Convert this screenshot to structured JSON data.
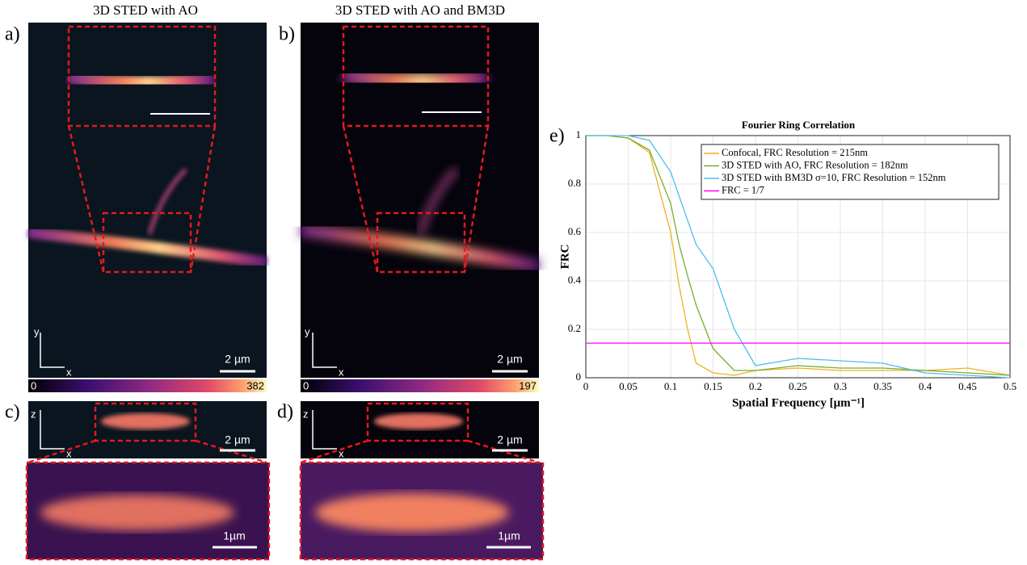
{
  "figure": {
    "panel_a": {
      "label": "a)",
      "title": "3D STED with AO",
      "colorbar_min": "0",
      "colorbar_max": "382",
      "scale_bar": "2 µm",
      "axis_y": "y",
      "axis_x": "x"
    },
    "panel_b": {
      "label": "b)",
      "title": "3D STED with AO and BM3D",
      "colorbar_min": "0",
      "colorbar_max": "197",
      "scale_bar": "2 µm",
      "axis_y": "y",
      "axis_x": "x"
    },
    "panel_c": {
      "label": "c)",
      "scale_bar": "2 µm",
      "zoom_scale_bar": "1µm",
      "axis_z": "z",
      "axis_x": "x"
    },
    "panel_d": {
      "label": "d)",
      "scale_bar": "2 µm",
      "zoom_scale_bar": "1µm",
      "axis_z": "z",
      "axis_x": "x"
    },
    "panel_e": {
      "label": "e)"
    }
  },
  "chart_data": {
    "type": "line",
    "title": "Fourier Ring Correlation",
    "xlabel": "Spatial Frequency [μm⁻¹]",
    "ylabel": "FRC",
    "x": [
      0,
      0.025,
      0.05,
      0.075,
      0.1,
      0.11,
      0.12,
      0.13,
      0.15,
      0.175,
      0.2,
      0.25,
      0.3,
      0.35,
      0.4,
      0.45,
      0.5
    ],
    "series": [
      {
        "name": "Confocal, FRC Resolution = 215nm",
        "color": "#EDB120",
        "values": [
          1,
          1,
          0.99,
          0.93,
          0.6,
          0.38,
          0.2,
          0.06,
          0.02,
          0.01,
          0.03,
          0.04,
          0.03,
          0.03,
          0.03,
          0.04,
          0.01
        ]
      },
      {
        "name": "3D STED with AO, FRC Resolution = 182nm",
        "color": "#77AC30",
        "values": [
          1,
          1,
          0.99,
          0.94,
          0.72,
          0.55,
          0.42,
          0.3,
          0.12,
          0.03,
          0.03,
          0.05,
          0.04,
          0.04,
          0.03,
          0.02,
          0.01
        ]
      },
      {
        "name": "3D STED with BM3D σ=10, FRC Resolution = 152nm",
        "color": "#4DBEEE",
        "values": [
          1,
          1,
          1,
          0.98,
          0.85,
          0.75,
          0.65,
          0.55,
          0.45,
          0.2,
          0.05,
          0.08,
          0.07,
          0.06,
          0.02,
          0.01,
          0
        ]
      },
      {
        "name": "FRC = 1/7",
        "color": "#FF00FF",
        "x": [
          0,
          0.5
        ],
        "values": [
          0.143,
          0.143
        ]
      }
    ],
    "xlim": [
      0,
      0.5
    ],
    "ylim": [
      0,
      1
    ],
    "xticks": [
      0,
      0.05,
      0.1,
      0.15,
      0.2,
      0.25,
      0.3,
      0.35,
      0.4,
      0.45,
      0.5
    ],
    "yticks": [
      0,
      0.2,
      0.4,
      0.6,
      0.8,
      1
    ],
    "grid": true
  }
}
